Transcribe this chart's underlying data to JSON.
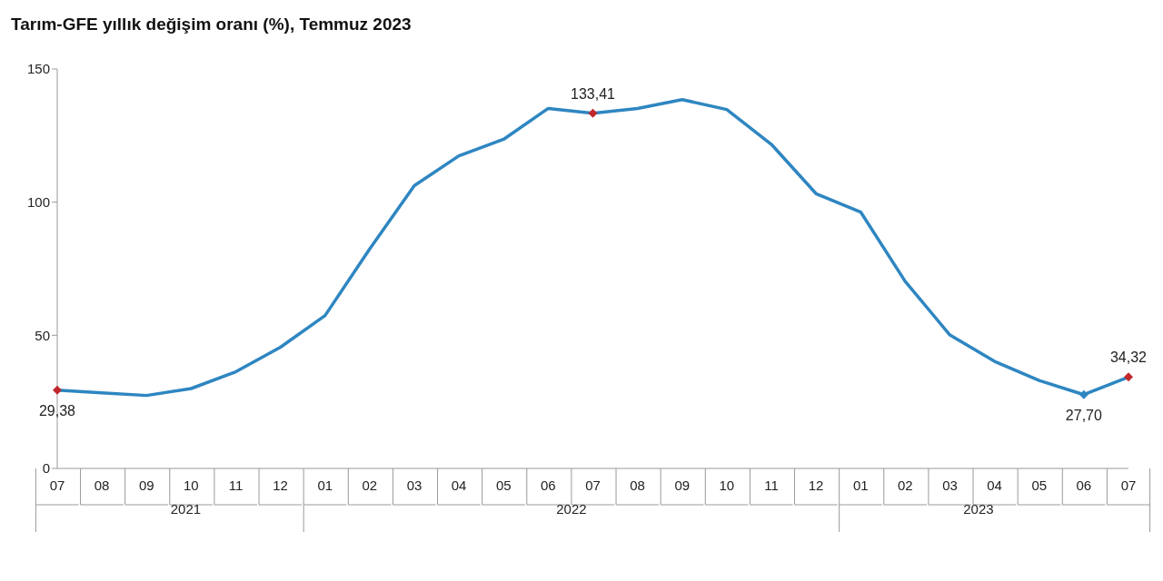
{
  "chart_data": {
    "type": "line",
    "title": "Tarım-GFE yıllık değişim oranı (%), Temmuz 2023",
    "categories": [
      "07",
      "08",
      "09",
      "10",
      "11",
      "12",
      "01",
      "02",
      "03",
      "04",
      "05",
      "06",
      "07",
      "08",
      "09",
      "10",
      "11",
      "12",
      "01",
      "02",
      "03",
      "04",
      "05",
      "06",
      "07"
    ],
    "series": [
      {
        "color": "#2e86c1",
        "values": [
          29.38,
          28.4,
          27.4,
          30.0,
          36.3,
          45.5,
          57.4,
          82.4,
          106.2,
          117.4,
          123.6,
          135.2,
          133.41,
          135.2,
          138.5,
          134.8,
          121.7,
          103.2,
          96.3,
          70.2,
          50.1,
          40.2,
          33.0,
          27.7,
          34.32
        ],
        "value_labels": [
          "29,38",
          null,
          null,
          null,
          null,
          null,
          null,
          null,
          null,
          null,
          null,
          null,
          "133,41",
          null,
          null,
          null,
          null,
          null,
          null,
          null,
          null,
          null,
          null,
          "27,70",
          "34,32"
        ],
        "colors": [
          "#c0282d",
          null,
          null,
          null,
          null,
          null,
          null,
          null,
          null,
          null,
          null,
          null,
          "#c0282d",
          null,
          null,
          null,
          null,
          null,
          null,
          null,
          null,
          null,
          null,
          "#2e86c1",
          "#c0282d"
        ]
      }
    ],
    "annotations": [
      "2021",
      "2022",
      "2023"
    ],
    "ylim": [
      0,
      150
    ],
    "yticks": [
      0,
      50,
      100,
      150
    ],
    "line_style": "solid"
  }
}
